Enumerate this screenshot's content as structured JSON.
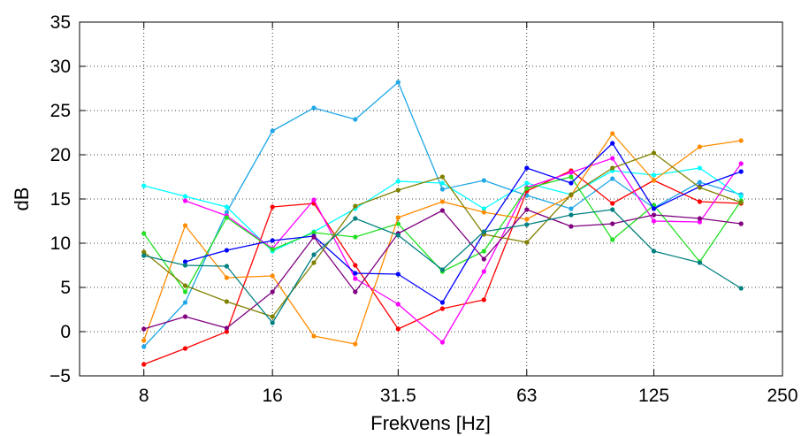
{
  "chart_data": {
    "type": "line",
    "xlabel": "Frekvens [Hz]",
    "ylabel": "dB",
    "xscale": "log",
    "xlim": [
      5.657,
      250
    ],
    "ylim": [
      -5,
      35
    ],
    "xticks": [
      8,
      16,
      31.5,
      63,
      125,
      250
    ],
    "xtick_labels": [
      "8",
      "16",
      "31.5",
      "63",
      "125",
      "250"
    ],
    "yticks": [
      -5,
      0,
      5,
      10,
      15,
      20,
      25,
      30,
      35
    ],
    "ytick_labels": [
      "−5",
      "0",
      "5",
      "10",
      "15",
      "20",
      "25",
      "30",
      "35"
    ],
    "grid": true,
    "grid_style": "dotted",
    "x": [
      8,
      10,
      12.5,
      16,
      20,
      25,
      31.5,
      40,
      50,
      63,
      80,
      100,
      125,
      160,
      200
    ],
    "series": [
      {
        "color": "#1fa7e6",
        "values": [
          -1.7,
          3.3,
          13.5,
          22.7,
          25.3,
          24.0,
          28.2,
          16.1,
          17.1,
          15.4,
          13.9,
          17.3,
          14.0,
          16.9,
          15.5
        ]
      },
      {
        "color": "#00ffff",
        "values": [
          16.5,
          15.3,
          14.1,
          9.1,
          11.3,
          13.9,
          17.0,
          16.8,
          13.9,
          16.8,
          15.5,
          18.2,
          17.7,
          18.5,
          15.3
        ]
      },
      {
        "color": "#ff0000",
        "values": [
          -3.7,
          -1.9,
          0.0,
          14.1,
          14.5,
          7.5,
          0.3,
          2.6,
          3.6,
          15.9,
          18.2,
          14.5,
          17.1,
          14.7,
          14.5
        ]
      },
      {
        "color": "#ff00ff",
        "values": [
          null,
          14.8,
          13.1,
          9.4,
          14.9,
          6.0,
          3.1,
          -1.2,
          6.8,
          16.3,
          18.0,
          19.6,
          12.5,
          12.4,
          19.0
        ]
      },
      {
        "color": "#22e022",
        "values": [
          11.1,
          4.5,
          12.9,
          9.3,
          11.2,
          10.7,
          12.2,
          6.8,
          9.1,
          16.2,
          17.5,
          10.4,
          14.3,
          7.9,
          14.8
        ]
      },
      {
        "color": "#ff8c00",
        "values": [
          -1.0,
          12.0,
          6.1,
          6.3,
          -0.5,
          -1.4,
          12.9,
          14.7,
          13.5,
          12.7,
          15.4,
          22.4,
          17.1,
          20.9,
          21.6
        ]
      },
      {
        "color": "#0000ff",
        "values": [
          null,
          7.9,
          9.2,
          10.3,
          10.8,
          6.6,
          6.5,
          3.3,
          11.2,
          18.5,
          16.8,
          21.3,
          13.9,
          16.4,
          18.1
        ]
      },
      {
        "color": "#800080",
        "values": [
          0.3,
          1.7,
          0.4,
          4.5,
          10.7,
          4.5,
          11.1,
          13.7,
          8.2,
          13.8,
          11.9,
          12.2,
          13.2,
          12.8,
          12.2
        ]
      },
      {
        "color": "#808000",
        "values": [
          9.0,
          5.2,
          3.4,
          1.7,
          7.8,
          14.2,
          16.0,
          17.5,
          11.0,
          10.1,
          15.5,
          18.5,
          20.2,
          16.3,
          14.6
        ]
      },
      {
        "color": "#008080",
        "values": [
          8.6,
          7.5,
          7.4,
          1.0,
          8.7,
          12.8,
          10.9,
          7.0,
          11.3,
          12.1,
          13.2,
          13.8,
          9.1,
          7.8,
          4.9
        ]
      }
    ]
  }
}
